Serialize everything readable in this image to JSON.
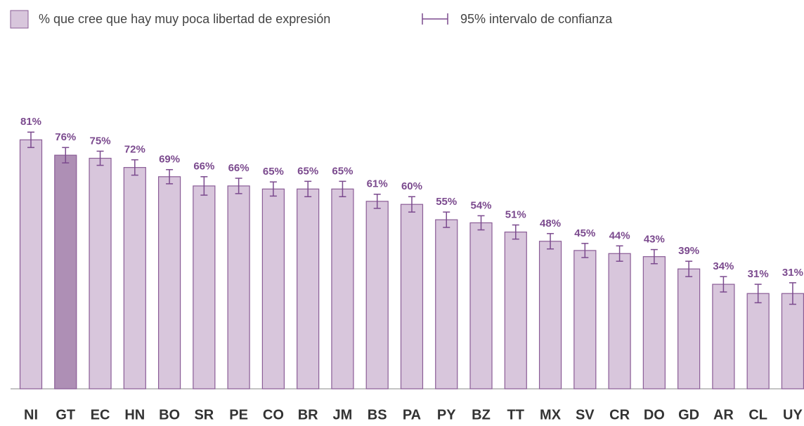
{
  "chart_data": {
    "type": "bar",
    "categories": [
      "NI",
      "GT",
      "EC",
      "HN",
      "BO",
      "SR",
      "PE",
      "CO",
      "BR",
      "JM",
      "BS",
      "PA",
      "PY",
      "BZ",
      "TT",
      "MX",
      "SV",
      "CR",
      "DO",
      "GD",
      "AR",
      "CL",
      "UY"
    ],
    "series": [
      {
        "name": "% que cree que hay muy poca libertad de expresión",
        "values": [
          81,
          76,
          75,
          72,
          69,
          66,
          66,
          65,
          65,
          65,
          61,
          60,
          55,
          54,
          51,
          48,
          45,
          44,
          43,
          39,
          34,
          31,
          31
        ],
        "value_labels": [
          "81%",
          "76%",
          "75%",
          "72%",
          "69%",
          "66%",
          "66%",
          "65%",
          "65%",
          "65%",
          "61%",
          "60%",
          "55%",
          "54%",
          "51%",
          "48%",
          "45%",
          "44%",
          "43%",
          "39%",
          "34%",
          "31%",
          "31%"
        ],
        "errors": [
          2.5,
          2.5,
          2.3,
          2.5,
          2.3,
          3.0,
          2.5,
          2.3,
          2.5,
          2.5,
          2.3,
          2.5,
          2.5,
          2.3,
          2.3,
          2.5,
          2.3,
          2.5,
          2.3,
          2.5,
          2.5,
          3.0,
          3.5
        ],
        "color": "#d8c6dc",
        "colors": [
          "#d8c6dc",
          "#ae8fb5",
          "#d8c6dc",
          "#d8c6dc",
          "#d8c6dc",
          "#d8c6dc",
          "#d8c6dc",
          "#d8c6dc",
          "#d8c6dc",
          "#d8c6dc",
          "#d8c6dc",
          "#d8c6dc",
          "#d8c6dc",
          "#d8c6dc",
          "#d8c6dc",
          "#d8c6dc",
          "#d8c6dc",
          "#d8c6dc",
          "#d8c6dc",
          "#d8c6dc",
          "#d8c6dc",
          "#d8c6dc",
          "#d8c6dc"
        ]
      }
    ],
    "error_bar_name": "95% intervalo de confianza",
    "ylim": [
      0,
      100
    ],
    "grid": false
  }
}
